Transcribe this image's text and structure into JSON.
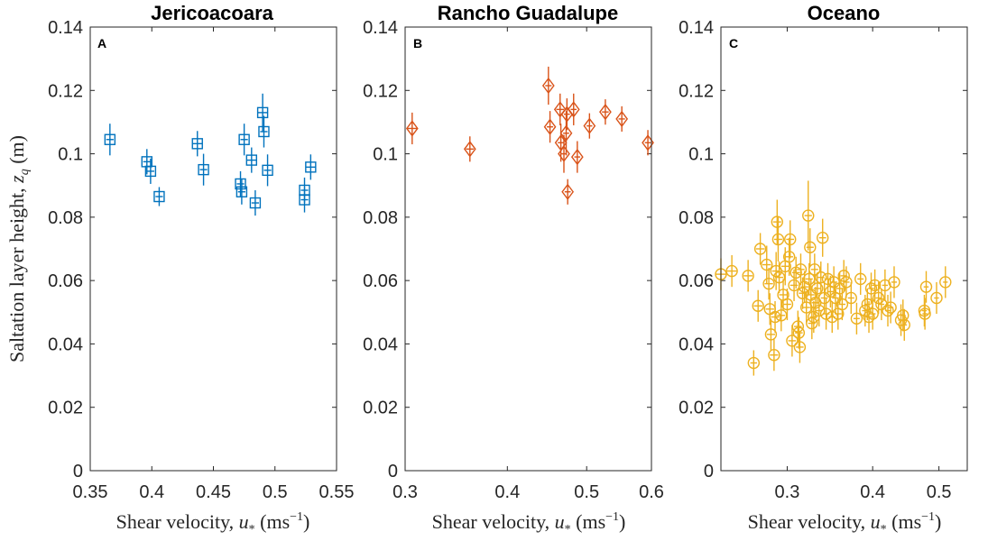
{
  "ylabel": "Saltation layer height, z_q (m)",
  "ylabel_parts": {
    "main": "Saltation layer height, ",
    "var": "z",
    "sub": "q",
    "unit": " (m)"
  },
  "xlabel_parts": {
    "main": "Shear velocity, ",
    "var": "u",
    "sub": "*",
    "unit": " (ms",
    "exp": "−1",
    "close": ")"
  },
  "ylim": [
    0,
    0.14
  ],
  "yticks": [
    "0",
    "0.02",
    "0.04",
    "0.06",
    "0.08",
    "0.1",
    "0.12",
    "0.14"
  ],
  "chart_data": [
    {
      "type": "scatter",
      "title": "Jericoacoara",
      "panel_letter": "A",
      "marker": "square",
      "color": "#0072BD",
      "xscale": "linear",
      "xlim": [
        0.35,
        0.55
      ],
      "xticks": [
        0.35,
        0.4,
        0.45,
        0.5,
        0.55
      ],
      "xticklabels": [
        "0.35",
        "0.4",
        "0.45",
        "0.5",
        "0.55"
      ],
      "ylim": [
        0,
        0.14
      ],
      "points": [
        {
          "x": 0.366,
          "y": 0.1045,
          "ey": 0.005,
          "ex": 0.003
        },
        {
          "x": 0.396,
          "y": 0.0975,
          "ey": 0.004,
          "ex": 0.003
        },
        {
          "x": 0.399,
          "y": 0.0945,
          "ey": 0.004,
          "ex": 0.003
        },
        {
          "x": 0.406,
          "y": 0.0865,
          "ey": 0.003,
          "ex": 0.003
        },
        {
          "x": 0.437,
          "y": 0.1032,
          "ey": 0.004,
          "ex": 0.004
        },
        {
          "x": 0.442,
          "y": 0.095,
          "ey": 0.005,
          "ex": 0.003
        },
        {
          "x": 0.472,
          "y": 0.0905,
          "ey": 0.004,
          "ex": 0.003
        },
        {
          "x": 0.473,
          "y": 0.088,
          "ey": 0.004,
          "ex": 0.003
        },
        {
          "x": 0.475,
          "y": 0.1045,
          "ey": 0.005,
          "ex": 0.003
        },
        {
          "x": 0.481,
          "y": 0.098,
          "ey": 0.004,
          "ex": 0.004
        },
        {
          "x": 0.484,
          "y": 0.0845,
          "ey": 0.004,
          "ex": 0.003
        },
        {
          "x": 0.49,
          "y": 0.113,
          "ey": 0.006,
          "ex": 0.004
        },
        {
          "x": 0.491,
          "y": 0.107,
          "ey": 0.005,
          "ex": 0.003
        },
        {
          "x": 0.494,
          "y": 0.0948,
          "ey": 0.005,
          "ex": 0.003
        },
        {
          "x": 0.524,
          "y": 0.0885,
          "ey": 0.004,
          "ex": 0.003
        },
        {
          "x": 0.524,
          "y": 0.0855,
          "ey": 0.004,
          "ex": 0.003
        },
        {
          "x": 0.529,
          "y": 0.0958,
          "ey": 0.004,
          "ex": 0.004
        }
      ]
    },
    {
      "type": "scatter",
      "title": "Rancho Guadalupe",
      "panel_letter": "B",
      "marker": "diamond",
      "color": "#D95319",
      "xscale": "log",
      "xlim": [
        0.3,
        0.6
      ],
      "xticks": [
        0.3,
        0.4,
        0.5,
        0.6
      ],
      "xticklabels": [
        "0.3",
        "0.4",
        "0.5",
        "0.6"
      ],
      "ylim": [
        0,
        0.14
      ],
      "points": [
        {
          "x": 0.306,
          "y": 0.108,
          "ey": 0.005,
          "ex": 0.004
        },
        {
          "x": 0.36,
          "y": 0.1015,
          "ey": 0.004,
          "ex": 0.004
        },
        {
          "x": 0.449,
          "y": 0.1215,
          "ey": 0.006,
          "ex": 0.004
        },
        {
          "x": 0.451,
          "y": 0.1085,
          "ey": 0.005,
          "ex": 0.004
        },
        {
          "x": 0.464,
          "y": 0.114,
          "ey": 0.005,
          "ex": 0.005
        },
        {
          "x": 0.465,
          "y": 0.1035,
          "ey": 0.006,
          "ex": 0.004
        },
        {
          "x": 0.469,
          "y": 0.1,
          "ey": 0.006,
          "ex": 0.004
        },
        {
          "x": 0.472,
          "y": 0.1065,
          "ey": 0.007,
          "ex": 0.004
        },
        {
          "x": 0.473,
          "y": 0.1125,
          "ey": 0.005,
          "ex": 0.004
        },
        {
          "x": 0.474,
          "y": 0.088,
          "ey": 0.004,
          "ex": 0.004
        },
        {
          "x": 0.482,
          "y": 0.114,
          "ey": 0.005,
          "ex": 0.004
        },
        {
          "x": 0.487,
          "y": 0.099,
          "ey": 0.005,
          "ex": 0.004
        },
        {
          "x": 0.504,
          "y": 0.1088,
          "ey": 0.004,
          "ex": 0.004
        },
        {
          "x": 0.527,
          "y": 0.1132,
          "ey": 0.004,
          "ex": 0.005
        },
        {
          "x": 0.552,
          "y": 0.111,
          "ey": 0.004,
          "ex": 0.005
        },
        {
          "x": 0.594,
          "y": 0.1035,
          "ey": 0.004,
          "ex": 0.005
        }
      ]
    },
    {
      "type": "scatter",
      "title": "Oceano",
      "panel_letter": "C",
      "marker": "circle",
      "color": "#EDB120",
      "xscale": "log",
      "xlim": [
        0.24,
        0.55
      ],
      "xticks": [
        0.3,
        0.4,
        0.5
      ],
      "xticklabels": [
        "0.3",
        "0.4",
        "0.5"
      ],
      "ylim": [
        0,
        0.14
      ],
      "points": [
        {
          "x": 0.24,
          "y": 0.062,
          "ey": 0.005,
          "ex": 0.004
        },
        {
          "x": 0.249,
          "y": 0.063,
          "ey": 0.005,
          "ex": 0.004
        },
        {
          "x": 0.263,
          "y": 0.0615,
          "ey": 0.005,
          "ex": 0.004
        },
        {
          "x": 0.268,
          "y": 0.034,
          "ey": 0.004,
          "ex": 0.003
        },
        {
          "x": 0.272,
          "y": 0.052,
          "ey": 0.005,
          "ex": 0.004
        },
        {
          "x": 0.274,
          "y": 0.07,
          "ey": 0.005,
          "ex": 0.004
        },
        {
          "x": 0.28,
          "y": 0.065,
          "ey": 0.006,
          "ex": 0.004
        },
        {
          "x": 0.282,
          "y": 0.059,
          "ey": 0.005,
          "ex": 0.004
        },
        {
          "x": 0.283,
          "y": 0.051,
          "ey": 0.005,
          "ex": 0.004
        },
        {
          "x": 0.284,
          "y": 0.043,
          "ey": 0.005,
          "ex": 0.004
        },
        {
          "x": 0.287,
          "y": 0.0365,
          "ey": 0.005,
          "ex": 0.004
        },
        {
          "x": 0.288,
          "y": 0.0485,
          "ey": 0.005,
          "ex": 0.004
        },
        {
          "x": 0.289,
          "y": 0.063,
          "ey": 0.006,
          "ex": 0.004
        },
        {
          "x": 0.29,
          "y": 0.0785,
          "ey": 0.007,
          "ex": 0.004
        },
        {
          "x": 0.291,
          "y": 0.073,
          "ey": 0.007,
          "ex": 0.004
        },
        {
          "x": 0.292,
          "y": 0.061,
          "ey": 0.005,
          "ex": 0.004
        },
        {
          "x": 0.294,
          "y": 0.049,
          "ey": 0.005,
          "ex": 0.004
        },
        {
          "x": 0.296,
          "y": 0.0555,
          "ey": 0.005,
          "ex": 0.004
        },
        {
          "x": 0.298,
          "y": 0.0645,
          "ey": 0.006,
          "ex": 0.004
        },
        {
          "x": 0.3,
          "y": 0.0525,
          "ey": 0.005,
          "ex": 0.004
        },
        {
          "x": 0.302,
          "y": 0.0675,
          "ey": 0.006,
          "ex": 0.004
        },
        {
          "x": 0.303,
          "y": 0.073,
          "ey": 0.006,
          "ex": 0.004
        },
        {
          "x": 0.305,
          "y": 0.041,
          "ey": 0.005,
          "ex": 0.004
        },
        {
          "x": 0.307,
          "y": 0.0585,
          "ey": 0.005,
          "ex": 0.004
        },
        {
          "x": 0.309,
          "y": 0.0625,
          "ey": 0.005,
          "ex": 0.004
        },
        {
          "x": 0.311,
          "y": 0.0455,
          "ey": 0.005,
          "ex": 0.004
        },
        {
          "x": 0.312,
          "y": 0.0435,
          "ey": 0.005,
          "ex": 0.004
        },
        {
          "x": 0.313,
          "y": 0.039,
          "ey": 0.005,
          "ex": 0.004
        },
        {
          "x": 0.314,
          "y": 0.0635,
          "ey": 0.005,
          "ex": 0.004
        },
        {
          "x": 0.316,
          "y": 0.056,
          "ey": 0.005,
          "ex": 0.004
        },
        {
          "x": 0.318,
          "y": 0.058,
          "ey": 0.005,
          "ex": 0.004
        },
        {
          "x": 0.32,
          "y": 0.0515,
          "ey": 0.005,
          "ex": 0.004
        },
        {
          "x": 0.322,
          "y": 0.0805,
          "ey": 0.011,
          "ex": 0.004
        },
        {
          "x": 0.323,
          "y": 0.0605,
          "ey": 0.005,
          "ex": 0.004
        },
        {
          "x": 0.324,
          "y": 0.0705,
          "ey": 0.006,
          "ex": 0.004
        },
        {
          "x": 0.325,
          "y": 0.0555,
          "ey": 0.005,
          "ex": 0.004
        },
        {
          "x": 0.326,
          "y": 0.0465,
          "ey": 0.005,
          "ex": 0.004
        },
        {
          "x": 0.328,
          "y": 0.0485,
          "ey": 0.005,
          "ex": 0.004
        },
        {
          "x": 0.329,
          "y": 0.0635,
          "ey": 0.005,
          "ex": 0.004
        },
        {
          "x": 0.33,
          "y": 0.053,
          "ey": 0.005,
          "ex": 0.004
        },
        {
          "x": 0.332,
          "y": 0.0575,
          "ey": 0.005,
          "ex": 0.004
        },
        {
          "x": 0.334,
          "y": 0.0505,
          "ey": 0.005,
          "ex": 0.004
        },
        {
          "x": 0.336,
          "y": 0.061,
          "ey": 0.005,
          "ex": 0.004
        },
        {
          "x": 0.338,
          "y": 0.0735,
          "ey": 0.006,
          "ex": 0.004
        },
        {
          "x": 0.34,
          "y": 0.0545,
          "ey": 0.005,
          "ex": 0.004
        },
        {
          "x": 0.342,
          "y": 0.0495,
          "ey": 0.005,
          "ex": 0.004
        },
        {
          "x": 0.344,
          "y": 0.0605,
          "ey": 0.005,
          "ex": 0.004
        },
        {
          "x": 0.347,
          "y": 0.0565,
          "ey": 0.005,
          "ex": 0.004
        },
        {
          "x": 0.349,
          "y": 0.0485,
          "ey": 0.005,
          "ex": 0.004
        },
        {
          "x": 0.351,
          "y": 0.0595,
          "ey": 0.005,
          "ex": 0.004
        },
        {
          "x": 0.353,
          "y": 0.0545,
          "ey": 0.005,
          "ex": 0.004
        },
        {
          "x": 0.356,
          "y": 0.0495,
          "ey": 0.005,
          "ex": 0.004
        },
        {
          "x": 0.358,
          "y": 0.0575,
          "ey": 0.005,
          "ex": 0.004
        },
        {
          "x": 0.361,
          "y": 0.0525,
          "ey": 0.005,
          "ex": 0.004
        },
        {
          "x": 0.363,
          "y": 0.0615,
          "ey": 0.005,
          "ex": 0.004
        },
        {
          "x": 0.366,
          "y": 0.0595,
          "ey": 0.005,
          "ex": 0.004
        },
        {
          "x": 0.372,
          "y": 0.0545,
          "ey": 0.005,
          "ex": 0.004
        },
        {
          "x": 0.379,
          "y": 0.048,
          "ey": 0.005,
          "ex": 0.004
        },
        {
          "x": 0.384,
          "y": 0.0605,
          "ey": 0.005,
          "ex": 0.004
        },
        {
          "x": 0.39,
          "y": 0.0505,
          "ey": 0.005,
          "ex": 0.004
        },
        {
          "x": 0.393,
          "y": 0.0525,
          "ey": 0.005,
          "ex": 0.004
        },
        {
          "x": 0.395,
          "y": 0.0485,
          "ey": 0.005,
          "ex": 0.004
        },
        {
          "x": 0.398,
          "y": 0.0575,
          "ey": 0.005,
          "ex": 0.004
        },
        {
          "x": 0.4,
          "y": 0.0495,
          "ey": 0.005,
          "ex": 0.004
        },
        {
          "x": 0.403,
          "y": 0.0585,
          "ey": 0.005,
          "ex": 0.004
        },
        {
          "x": 0.408,
          "y": 0.0545,
          "ey": 0.005,
          "ex": 0.004
        },
        {
          "x": 0.412,
          "y": 0.0525,
          "ey": 0.005,
          "ex": 0.004
        },
        {
          "x": 0.417,
          "y": 0.0585,
          "ey": 0.005,
          "ex": 0.004
        },
        {
          "x": 0.421,
          "y": 0.0505,
          "ey": 0.005,
          "ex": 0.004
        },
        {
          "x": 0.425,
          "y": 0.0515,
          "ey": 0.005,
          "ex": 0.004
        },
        {
          "x": 0.43,
          "y": 0.0595,
          "ey": 0.005,
          "ex": 0.004
        },
        {
          "x": 0.44,
          "y": 0.0475,
          "ey": 0.005,
          "ex": 0.004
        },
        {
          "x": 0.443,
          "y": 0.049,
          "ey": 0.005,
          "ex": 0.004
        },
        {
          "x": 0.445,
          "y": 0.046,
          "ey": 0.005,
          "ex": 0.004
        },
        {
          "x": 0.476,
          "y": 0.0505,
          "ey": 0.005,
          "ex": 0.004
        },
        {
          "x": 0.477,
          "y": 0.0495,
          "ey": 0.005,
          "ex": 0.004
        },
        {
          "x": 0.479,
          "y": 0.058,
          "ey": 0.005,
          "ex": 0.004
        },
        {
          "x": 0.496,
          "y": 0.0545,
          "ey": 0.005,
          "ex": 0.004
        },
        {
          "x": 0.511,
          "y": 0.0595,
          "ey": 0.005,
          "ex": 0.004
        }
      ]
    }
  ]
}
